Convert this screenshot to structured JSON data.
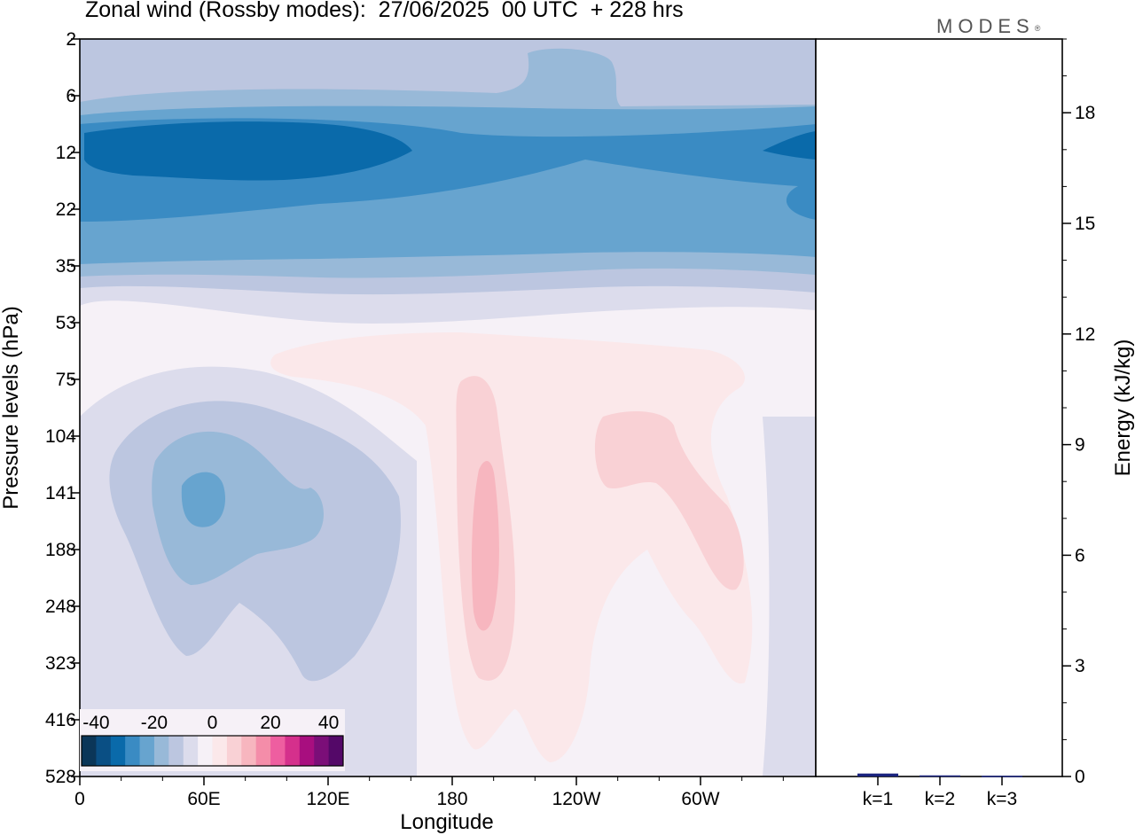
{
  "header": {
    "title": "Zonal wind (Rossby modes):  27/06/2025  00 UTC  + 228 hrs",
    "logo": "MODES",
    "logo_mark": "®"
  },
  "chart_data": [
    {
      "type": "heatmap",
      "title": "Zonal wind (Rossby modes):  27/06/2025  00 UTC  + 228 hrs",
      "xlabel": "Longitude",
      "ylabel": "Pressure levels (hPa)",
      "x_ticks": [
        "0",
        "60E",
        "120E",
        "180",
        "120W",
        "60W"
      ],
      "y_ticks": [
        "2",
        "6",
        "12",
        "22",
        "35",
        "53",
        "75",
        "104",
        "141",
        "188",
        "248",
        "323",
        "416",
        "528"
      ],
      "colorbar": {
        "ticks": [
          "-40",
          "-20",
          "0",
          "20",
          "40"
        ],
        "colors": [
          "#0b3658",
          "#0a4f84",
          "#0a6aaa",
          "#3a8bc3",
          "#67a4cf",
          "#98b9d8",
          "#bcc6e0",
          "#dcdcec",
          "#f6f1f7",
          "#fbe8ea",
          "#f9d1d5",
          "#f7b6bf",
          "#f48da9",
          "#ee5ea0",
          "#d5308c",
          "#a80e7f",
          "#7b0e78",
          "#540868"
        ]
      },
      "levels": [
        -40,
        -35,
        -30,
        -25,
        -20,
        -15,
        -10,
        -5,
        0,
        5,
        10,
        15,
        20,
        25,
        30,
        35,
        40
      ]
    },
    {
      "type": "bar",
      "categories": [
        "k=1",
        "k=2",
        "k=3"
      ],
      "values": [
        0.08,
        0.03,
        0.02
      ],
      "ylabel": "Energy (kJ/kg)",
      "ylim": [
        0,
        20
      ],
      "y_ticks": [
        "0",
        "3",
        "6",
        "9",
        "12",
        "15",
        "18"
      ],
      "bar_color": "#1a237e"
    }
  ]
}
